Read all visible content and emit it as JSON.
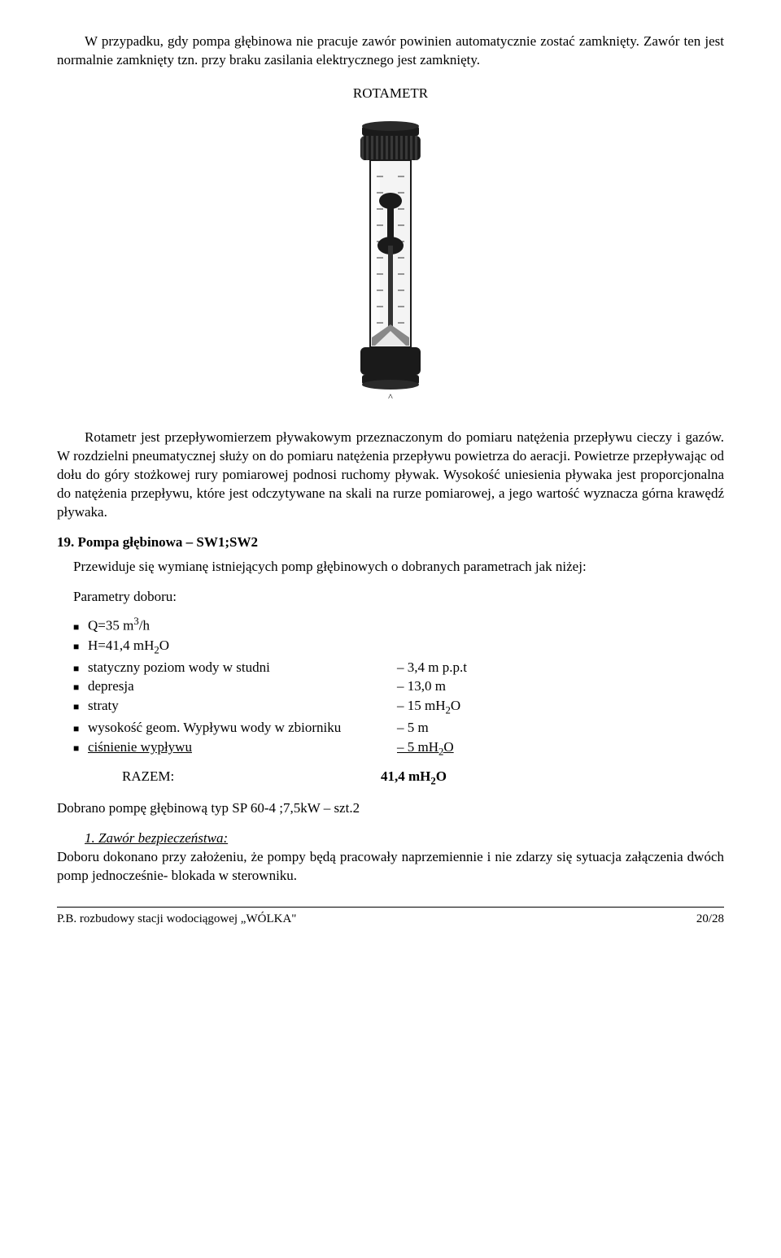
{
  "intro_para": "W przypadku, gdy pompa głębinowa nie pracuje zawór powinien automatycznie zostać zamknięty. Zawór ten jest normalnie zamknięty tzn. przy braku zasilania elektrycznego jest zamknięty.",
  "rotametr_title": "ROTAMETR",
  "rotametr_desc": "Rotametr jest przepływomierzem pływakowym przeznaczonym do pomiaru natężenia przepływu cieczy i gazów.  W rozdzielni pneumatycznej służy on do pomiaru natężenia przepływu powietrza do aeracji. Powietrze przepływając od dołu do góry stożkowej rury pomiarowej podnosi ruchomy pływak. Wysokość uniesienia pływaka jest proporcjonalna do natężenia przepływu, które jest odczytywane na skali na rurze pomiarowej, a jego wartość wyznacza górna krawędź pływaka.",
  "section19_title": "19. Pompa głębinowa – SW1;SW2",
  "section19_intro": "Przewiduje się wymianę istniejących pomp głębinowych o dobranych parametrach jak niżej:",
  "params_header": "Parametry doboru:",
  "params": [
    {
      "label_html": "Q=35 m<sup>3</sup>/h",
      "value": ""
    },
    {
      "label_html": "H=41,4 mH<sub>2</sub>O",
      "value": ""
    },
    {
      "label_html": "statyczny poziom wody w studni",
      "value": "– 3,4 m p.p.t"
    },
    {
      "label_html": "depresja",
      "value": "– 13,0 m"
    },
    {
      "label_html": "straty",
      "value_html": "– 15 mH<sub>2</sub>O"
    },
    {
      "label_html": "wysokość geom. Wypływu wody w zbiorniku",
      "value": "– 5 m"
    },
    {
      "label_html": "ciśnienie wypływu",
      "value_html": "– 5 mH<sub>2</sub>O",
      "underline": true
    }
  ],
  "razem_label": "RAZEM:",
  "razem_value_html": "<b>41,4  mH<sub>2</sub>O</b>",
  "selection_line": "Dobrano pompę głębinową typ SP 60-4 ;7,5kW – szt.2",
  "sub1_title": "1.  Zawór bezpieczeństwa:",
  "sub1_text": "Doboru dokonano przy założeniu, że pompy będą pracowały naprzemiennie i nie zdarzy się sytuacja załączenia dwóch pomp jednocześnie- blokada w sterowniku.",
  "footer_left": "P.B. rozbudowy stacji wodociągowej „WÓLKA\"",
  "footer_right": "20/28",
  "colors": {
    "text": "#000000",
    "background": "#ffffff",
    "rule": "#000000",
    "figure_black": "#1a1a1a",
    "figure_grey": "#888888",
    "figure_light": "#e8e8e8"
  }
}
